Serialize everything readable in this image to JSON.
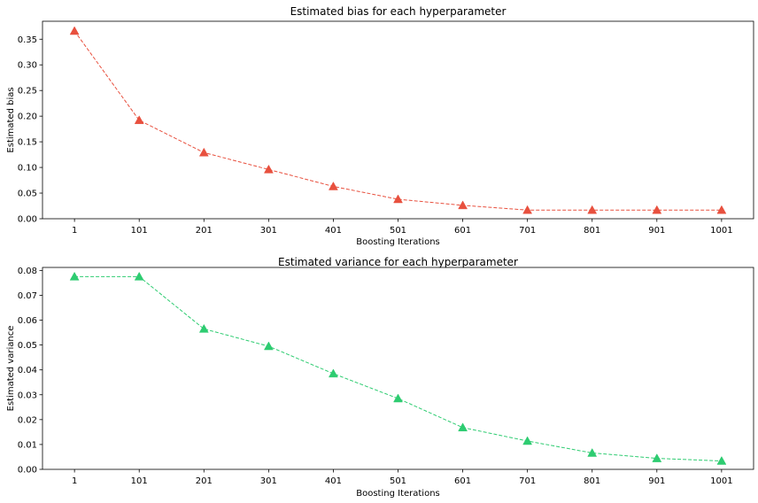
{
  "chart_data": [
    {
      "type": "line",
      "title": "Estimated bias for each hyperparameter",
      "xlabel": "Boosting Iterations",
      "ylabel": "Estimated bias",
      "categories": [
        "1",
        "101",
        "201",
        "301",
        "401",
        "501",
        "601",
        "701",
        "801",
        "901",
        "1001"
      ],
      "series": [
        {
          "values": [
            0.366,
            0.192,
            0.129,
            0.096,
            0.063,
            0.038,
            0.026,
            0.017,
            0.017,
            0.017,
            0.017
          ],
          "color": "#e8503e",
          "marker": "triangle-up",
          "line_style": "dashed"
        }
      ],
      "ylim": [
        0,
        0.385
      ],
      "yticks": [
        0.0,
        0.05,
        0.1,
        0.15,
        0.2,
        0.25,
        0.3,
        0.35
      ],
      "ytick_labels": [
        "0.00",
        "0.05",
        "0.10",
        "0.15",
        "0.20",
        "0.25",
        "0.30",
        "0.35"
      ],
      "grid": false,
      "legend": false
    },
    {
      "type": "line",
      "title": "Estimated variance for each hyperparameter",
      "xlabel": "Boosting Iterations",
      "ylabel": "Estimated variance",
      "categories": [
        "1",
        "101",
        "201",
        "301",
        "401",
        "501",
        "601",
        "701",
        "801",
        "901",
        "1001"
      ],
      "series": [
        {
          "values": [
            0.0775,
            0.0775,
            0.0565,
            0.0495,
            0.0385,
            0.0285,
            0.0168,
            0.0114,
            0.0066,
            0.0044,
            0.0034
          ],
          "color": "#2ecc71",
          "marker": "triangle-up",
          "line_style": "dashed"
        }
      ],
      "ylim": [
        0,
        0.0812
      ],
      "yticks": [
        0.0,
        0.01,
        0.02,
        0.03,
        0.04,
        0.05,
        0.06,
        0.07,
        0.08
      ],
      "ytick_labels": [
        "0.00",
        "0.01",
        "0.02",
        "0.03",
        "0.04",
        "0.05",
        "0.06",
        "0.07",
        "0.08"
      ],
      "grid": false,
      "legend": false
    }
  ]
}
